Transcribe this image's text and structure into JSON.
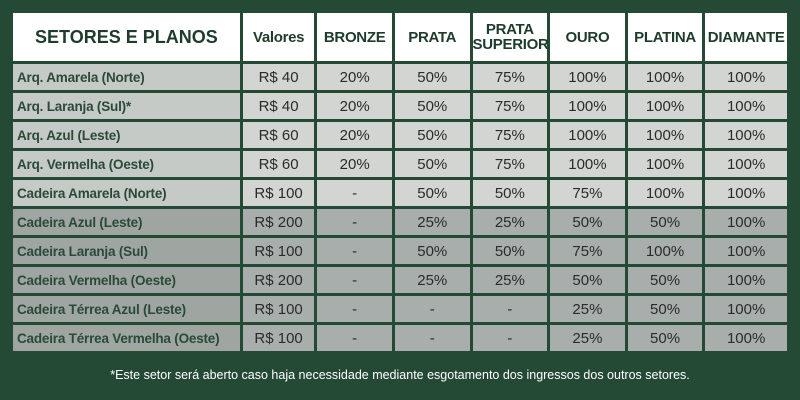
{
  "headers": {
    "sector": "SETORES E PLANOS",
    "values": "Valores",
    "plans": [
      "BRONZE",
      "PRATA",
      "PRATA SUPERIOR",
      "OURO",
      "PLATINA",
      "DIAMANTE"
    ]
  },
  "rows": [
    {
      "sector": "Arq. Amarela  (Norte)",
      "price": "R$ 40",
      "bronze": "20%",
      "prata": "50%",
      "prata_superior": "75%",
      "ouro": "100%",
      "platina": "100%",
      "diamante": "100%"
    },
    {
      "sector": "Arq. Laranja (Sul)*",
      "price": "R$ 40",
      "bronze": "20%",
      "prata": "50%",
      "prata_superior": "75%",
      "ouro": "100%",
      "platina": "100%",
      "diamante": "100%"
    },
    {
      "sector": "Arq. Azul (Leste)",
      "price": "R$ 60",
      "bronze": "20%",
      "prata": "50%",
      "prata_superior": "75%",
      "ouro": "100%",
      "platina": "100%",
      "diamante": "100%"
    },
    {
      "sector": "Arq. Vermelha (Oeste)",
      "price": "R$ 60",
      "bronze": "20%",
      "prata": "50%",
      "prata_superior": "75%",
      "ouro": "100%",
      "platina": "100%",
      "diamante": "100%"
    },
    {
      "sector": "Cadeira Amarela (Norte)",
      "price": "R$ 100",
      "bronze": "-",
      "prata": "50%",
      "prata_superior": "50%",
      "ouro": "75%",
      "platina": "100%",
      "diamante": "100%"
    },
    {
      "sector": "Cadeira Azul (Leste)",
      "price": "R$ 200",
      "bronze": "-",
      "prata": "25%",
      "prata_superior": "25%",
      "ouro": "50%",
      "platina": "50%",
      "diamante": "100%"
    },
    {
      "sector": "Cadeira Laranja (Sul)",
      "price": "R$ 100",
      "bronze": "-",
      "prata": "50%",
      "prata_superior": "50%",
      "ouro": "75%",
      "platina": "100%",
      "diamante": "100%"
    },
    {
      "sector": "Cadeira Vermelha (Oeste)",
      "price": "R$ 200",
      "bronze": "-",
      "prata": "25%",
      "prata_superior": "25%",
      "ouro": "50%",
      "platina": "50%",
      "diamante": "100%"
    },
    {
      "sector": "Cadeira Térrea Azul (Leste)",
      "price": "R$ 100",
      "bronze": "-",
      "prata": "-",
      "prata_superior": "-",
      "ouro": "25%",
      "platina": "50%",
      "diamante": "100%"
    },
    {
      "sector": "Cadeira Térrea Vermelha (Oeste)",
      "price": "R$ 100",
      "bronze": "-",
      "prata": "-",
      "prata_superior": "-",
      "ouro": "25%",
      "platina": "50%",
      "diamante": "100%"
    }
  ],
  "footnote": "*Este setor será aberto caso haja necessidade mediante esgotamento dos ingressos dos outros setores.",
  "colors": {
    "background": "#244a35",
    "header_bg": "#ffffff",
    "row_light": "#d2d5d2",
    "row_dark": "#a8aeab"
  }
}
